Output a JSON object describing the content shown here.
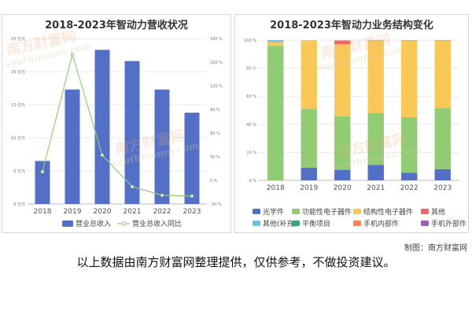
{
  "credit": "制图：南方财富网",
  "disclaimer": "以上数据由南方财富网整理提供，仅供参考，不做投资建议。",
  "watermark": {
    "cn": "南方财富网",
    "en": "southmoney.com"
  },
  "chart_data": [
    {
      "type": "bar",
      "title": "2018-2023年智动力营收状况",
      "categories": [
        "2018",
        "2019",
        "2020",
        "2021",
        "2022",
        "2023"
      ],
      "series": [
        {
          "name": "营业总收入",
          "type": "bar",
          "axis": "left",
          "color": "#5470c6",
          "values": [
            6.5,
            17.3,
            23.3,
            21.6,
            17.3,
            13.8
          ]
        },
        {
          "name": "营业总收入同比",
          "type": "line",
          "axis": "right",
          "color": "#91cc75",
          "values": [
            11,
            160,
            32,
            -8,
            -19,
            -20
          ]
        }
      ],
      "yleft": {
        "ticks": [
          0,
          5,
          10,
          15,
          20,
          25
        ],
        "unit": "亿元",
        "ylim": [
          0,
          25
        ]
      },
      "yright": {
        "ticks": [
          -30,
          0,
          30,
          60,
          90,
          120,
          150,
          180
        ],
        "unit": "%",
        "ylim": [
          -30,
          180
        ]
      },
      "legend_position": "bottom"
    },
    {
      "type": "bar",
      "stacked": true,
      "title": "2018-2023年智动力业务结构变化",
      "categories": [
        "2018",
        "2019",
        "2020",
        "2021",
        "2022",
        "2023"
      ],
      "yticks": [
        0,
        20,
        40,
        60,
        80,
        100
      ],
      "yunit": "%",
      "ylim": [
        0,
        100
      ],
      "series": [
        {
          "name": "光学件",
          "color": "#5470c6",
          "values": [
            0,
            9,
            7.5,
            11,
            5.5,
            8
          ]
        },
        {
          "name": "功能性电子器件",
          "color": "#91cc75",
          "values": [
            96,
            42,
            38,
            37,
            39.5,
            43.5
          ]
        },
        {
          "name": "结构性电子器件",
          "color": "#fac858",
          "values": [
            2.5,
            49,
            51.5,
            51.5,
            54.5,
            48
          ]
        },
        {
          "name": "其他",
          "color": "#ee6666",
          "values": [
            0,
            0,
            2.5,
            0,
            0,
            0
          ]
        },
        {
          "name": "其他(补充)",
          "color": "#73c0de",
          "values": [
            1.5,
            0,
            0.5,
            0.5,
            0.5,
            0.5
          ]
        },
        {
          "name": "平衡项目",
          "color": "#3ba272",
          "values": [
            0,
            0,
            0,
            0,
            0,
            0
          ]
        },
        {
          "name": "手机内部件",
          "color": "#fc8452",
          "values": [
            0,
            0,
            0,
            0,
            0,
            0
          ]
        },
        {
          "name": "手机外部件",
          "color": "#9a60b4",
          "values": [
            0,
            0,
            0,
            0,
            0,
            0
          ]
        }
      ],
      "legend_position": "bottom"
    }
  ]
}
